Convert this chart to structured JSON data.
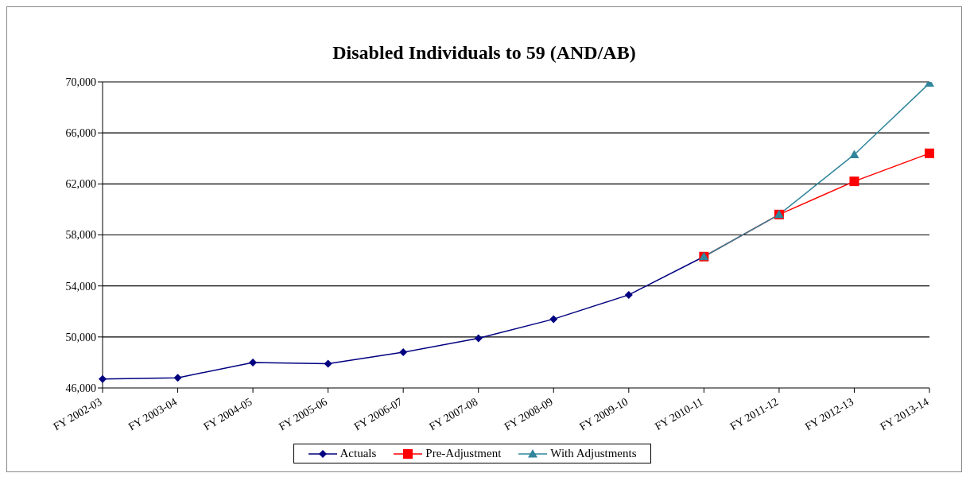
{
  "chart_data": {
    "type": "line",
    "title": "Disabled Individuals to 59 (AND/AB)",
    "categories": [
      "FY 2002-03",
      "FY 2003-04",
      "FY 2004-05",
      "FY 2005-06",
      "FY 2006-07",
      "FY 2007-08",
      "FY 2008-09",
      "FY 2009-10",
      "FY 2010-11",
      "FY 2011-12",
      "FY 2012-13",
      "FY 2013-14"
    ],
    "series": [
      {
        "name": "Actuals",
        "color": "#000080",
        "marker": "diamond",
        "values": [
          46700,
          46800,
          48000,
          47900,
          48800,
          49900,
          51400,
          53300,
          56300,
          null,
          null,
          null
        ]
      },
      {
        "name": "Pre-Adjustment",
        "color": "#ff0000",
        "marker": "square",
        "values": [
          null,
          null,
          null,
          null,
          null,
          null,
          null,
          null,
          56300,
          59600,
          62200,
          64400
        ]
      },
      {
        "name": "With Adjustments",
        "color": "#31859c",
        "marker": "triangle",
        "values": [
          null,
          null,
          null,
          null,
          null,
          null,
          null,
          null,
          56300,
          59600,
          64300,
          69900
        ]
      }
    ],
    "ylim": [
      46000,
      70000
    ],
    "yticks": [
      {
        "value": 46000,
        "label": "46,000"
      },
      {
        "value": 50000,
        "label": "50,000"
      },
      {
        "value": 54000,
        "label": "54,000"
      },
      {
        "value": 58000,
        "label": "58,000"
      },
      {
        "value": 62000,
        "label": "62,000"
      },
      {
        "value": 66000,
        "label": "66,000"
      },
      {
        "value": 70000,
        "label": "70,000"
      }
    ],
    "grid": "y",
    "legend": "bottom"
  }
}
